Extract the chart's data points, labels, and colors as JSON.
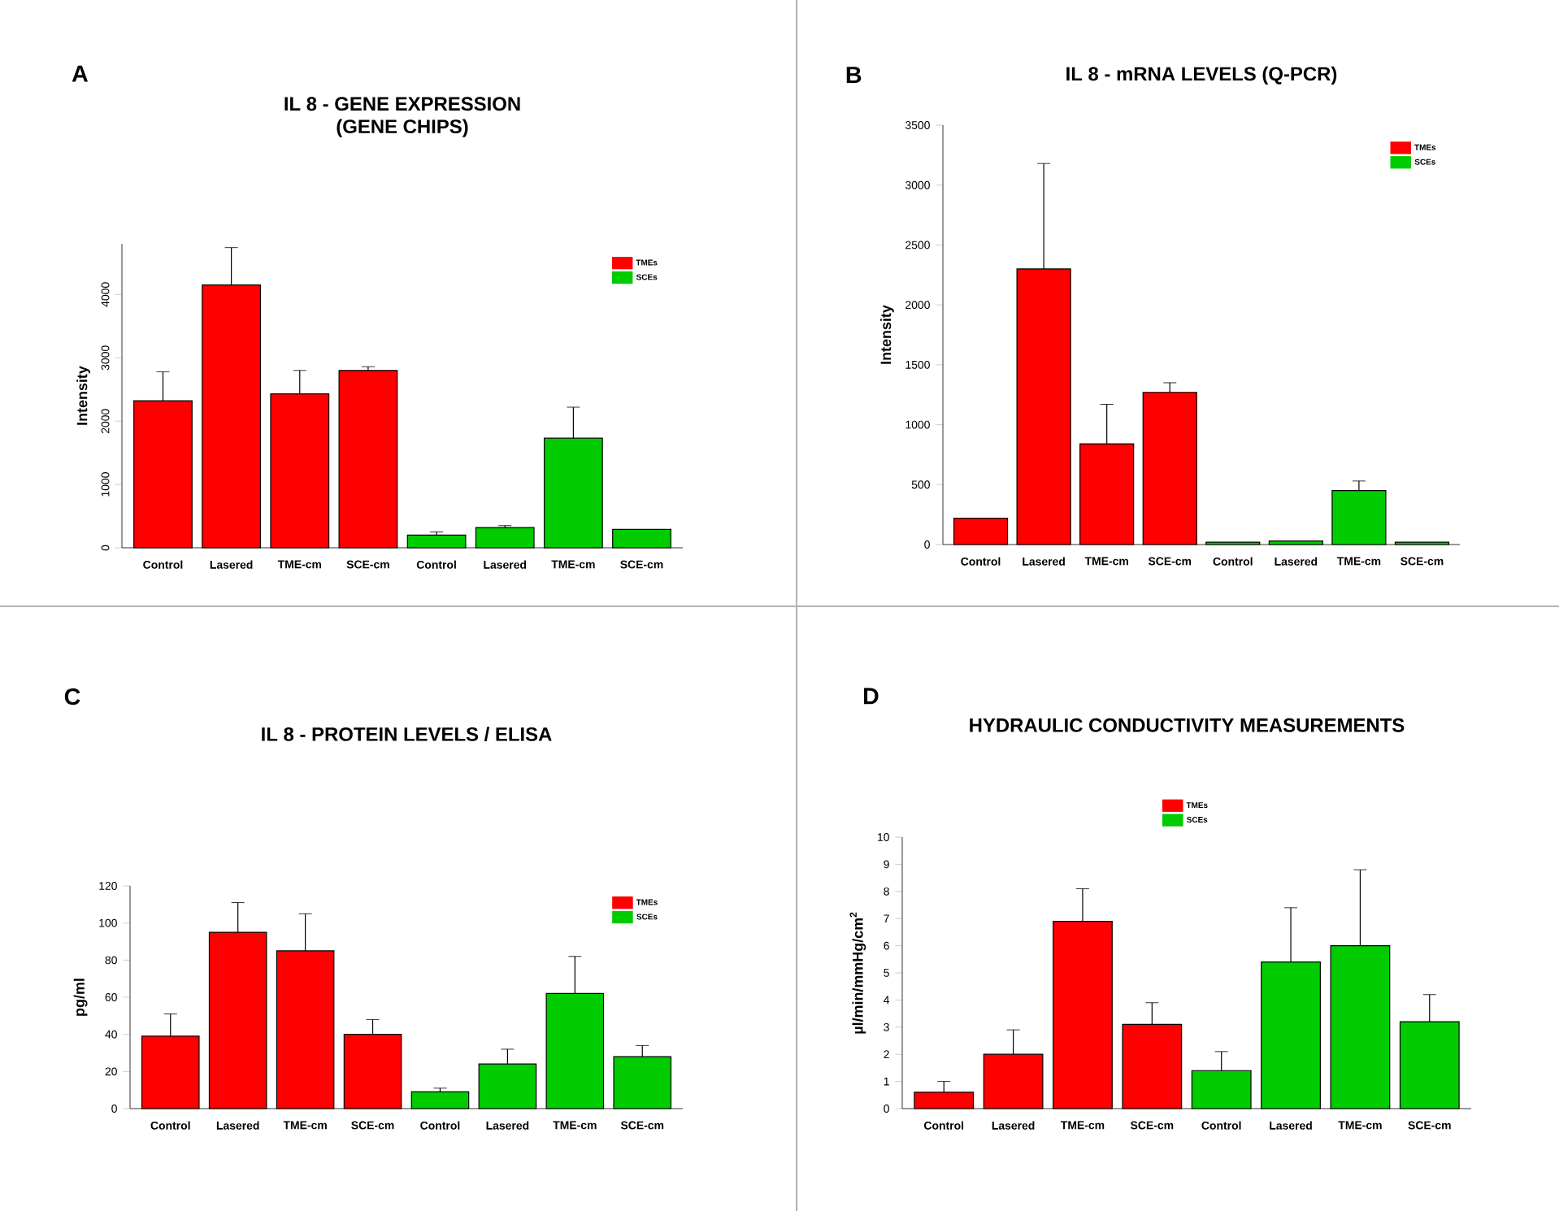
{
  "chart_data": [
    {
      "type": "bar",
      "title": "IL 8 - GENE EXPRESSION",
      "subtitle": "(GENE CHIPS)",
      "ylabel": "Intensity",
      "annotations": [
        "A"
      ],
      "categories": [
        "Control",
        "Lasered",
        "TME-cm",
        "SCE-cm",
        "Control",
        "Lasered",
        "TME-cm",
        "SCE-cm"
      ],
      "series": [
        {
          "name": "TMEs",
          "color": "#ff0000",
          "values": [
            2320,
            4150,
            2430,
            2800,
            null,
            null,
            null,
            null
          ],
          "errors": [
            460,
            590,
            370,
            60,
            null,
            null,
            null,
            null
          ]
        },
        {
          "name": "SCEs",
          "color": "#00cc00",
          "values": [
            null,
            null,
            null,
            null,
            200,
            320,
            1730,
            290
          ],
          "errors": [
            null,
            null,
            null,
            null,
            50,
            30,
            490,
            null
          ]
        }
      ],
      "ylim": [
        0,
        4800
      ],
      "yticks": [
        0,
        1000,
        2000,
        3000,
        4000
      ],
      "legend": "top right"
    },
    {
      "type": "bar",
      "title": "IL 8 - mRNA LEVELS (Q-PCR)",
      "ylabel": "Intensity",
      "annotations": [
        "B"
      ],
      "categories": [
        "Control",
        "Lasered",
        "TME-cm",
        "SCE-cm",
        "Control",
        "Lasered",
        "TME-cm",
        "SCE-cm"
      ],
      "series": [
        {
          "name": "TMEs",
          "color": "#ff0000",
          "values": [
            220,
            2300,
            840,
            1270,
            null,
            null,
            null,
            null
          ],
          "errors": [
            null,
            880,
            330,
            80,
            null,
            null,
            null,
            null
          ]
        },
        {
          "name": "SCEs",
          "color": "#00cc00",
          "values": [
            null,
            null,
            null,
            null,
            20,
            30,
            450,
            20
          ],
          "errors": [
            null,
            null,
            null,
            null,
            null,
            null,
            80,
            null
          ]
        }
      ],
      "ylim": [
        0,
        3500
      ],
      "yticks": [
        0,
        500,
        1000,
        1500,
        2000,
        2500,
        3000,
        3500
      ],
      "legend": "top right"
    },
    {
      "type": "bar",
      "title": "IL 8 - PROTEIN LEVELS / ELISA",
      "ylabel": "pg/ml",
      "annotations": [
        "C"
      ],
      "categories": [
        "Control",
        "Lasered",
        "TME-cm",
        "SCE-cm",
        "Control",
        "Lasered",
        "TME-cm",
        "SCE-cm"
      ],
      "series": [
        {
          "name": "TMEs",
          "color": "#ff0000",
          "values": [
            39,
            95,
            85,
            40,
            null,
            null,
            null,
            null
          ],
          "errors": [
            12,
            16,
            20,
            8,
            null,
            null,
            null,
            null
          ]
        },
        {
          "name": "SCEs",
          "color": "#00cc00",
          "values": [
            null,
            null,
            null,
            null,
            9,
            24,
            62,
            28
          ],
          "errors": [
            null,
            null,
            null,
            null,
            2,
            8,
            20,
            6
          ]
        }
      ],
      "ylim": [
        0,
        120
      ],
      "yticks": [
        0,
        20,
        40,
        60,
        80,
        100,
        120
      ],
      "legend": "top right"
    },
    {
      "type": "bar",
      "title": "HYDRAULIC CONDUCTIVITY MEASUREMENTS",
      "ylabel": "µl/min/mmHg/cm$^{2}$",
      "annotations": [
        "D"
      ],
      "categories": [
        "Control",
        "Lasered",
        "TME-cm",
        "SCE-cm",
        "Control",
        "Lasered",
        "TME-cm",
        "SCE-cm"
      ],
      "series": [
        {
          "name": "TMEs",
          "color": "#ff0000",
          "values": [
            0.6,
            2.0,
            6.9,
            3.1,
            null,
            null,
            null,
            null
          ],
          "errors": [
            0.4,
            0.9,
            1.2,
            0.8,
            null,
            null,
            null,
            null
          ]
        },
        {
          "name": "SCEs",
          "color": "#00cc00",
          "values": [
            null,
            null,
            null,
            null,
            1.4,
            5.4,
            6.0,
            3.2
          ],
          "errors": [
            null,
            null,
            null,
            null,
            0.7,
            2.0,
            2.8,
            1.0
          ]
        }
      ],
      "ylim": [
        0,
        10
      ],
      "yticks": [
        0,
        1,
        2,
        3,
        4,
        5,
        6,
        7,
        8,
        9,
        10
      ],
      "legend": "top"
    }
  ]
}
